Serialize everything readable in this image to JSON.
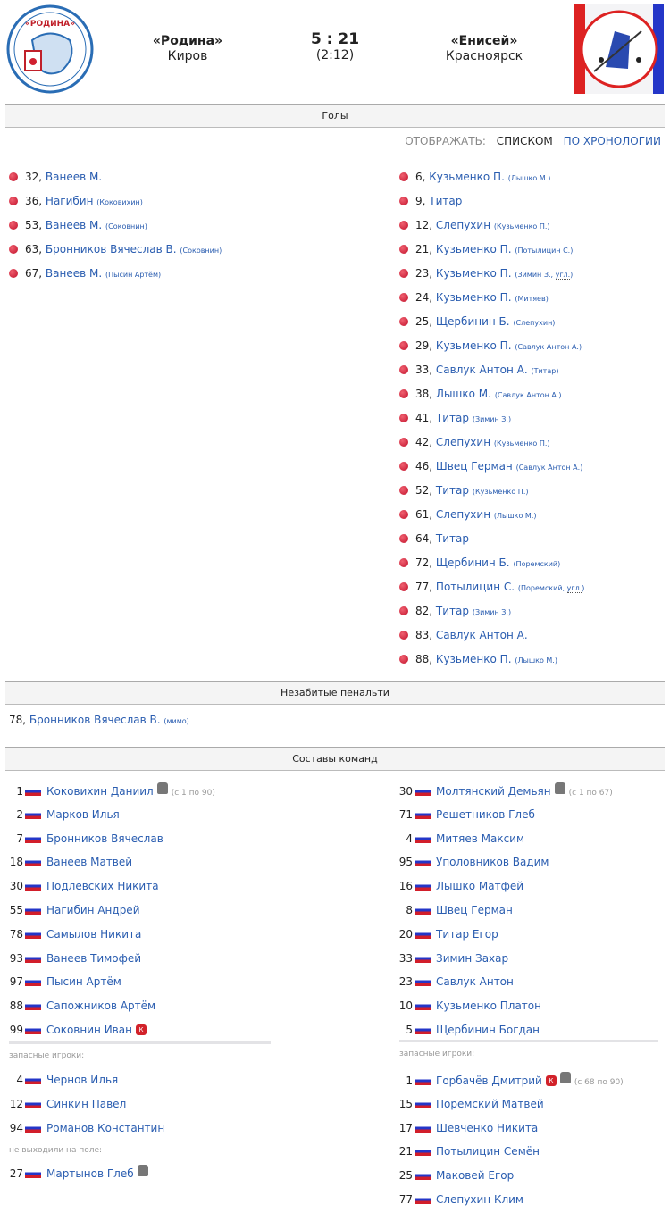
{
  "match": {
    "home": {
      "name": "«Родина»",
      "city": "Киров",
      "logo_text": "Спортивная школа «Родина»"
    },
    "away": {
      "name": "«Енисей»",
      "city": "Красноярск",
      "logo_text": "Хоккей с мячом Красноярск"
    },
    "score": "5 : 21",
    "halftime": "(2:12)"
  },
  "sections": {
    "goals": "Голы",
    "penalties": "Незабитые пенальти",
    "lineups": "Составы команд"
  },
  "view": {
    "label": "ОТОБРАЖАТЬ:",
    "list": "СПИСКОМ",
    "chrono": "ПО ХРОНОЛОГИИ"
  },
  "goals": {
    "home": [
      {
        "min": "32,",
        "scorer": "Ванеев М.",
        "assist": ""
      },
      {
        "min": "36,",
        "scorer": "Нагибин",
        "assist": "(Коковихин)"
      },
      {
        "min": "53,",
        "scorer": "Ванеев М.",
        "assist": "(Сокoвнин)"
      },
      {
        "min": "63,",
        "scorer": "Бронников Вячеслав В.",
        "assist": "(Соковнин)"
      },
      {
        "min": "67,",
        "scorer": "Ванеев М.",
        "assist": "(Пысин Артём)"
      }
    ],
    "away": [
      {
        "min": "6,",
        "scorer": "Кузьменко П.",
        "assist": "(Лышко М.)"
      },
      {
        "min": "9,",
        "scorer": "Титар",
        "assist": ""
      },
      {
        "min": "12,",
        "scorer": "Слепухин",
        "assist": "(Кузьменко П.)"
      },
      {
        "min": "21,",
        "scorer": "Кузьменко П.",
        "assist": "(Потылицин С.)"
      },
      {
        "min": "23,",
        "scorer": "Кузьменко П.",
        "assist": "(Зимин З., ",
        "extra": "угл.",
        "close": ")"
      },
      {
        "min": "24,",
        "scorer": "Кузьменко П.",
        "assist": "(Митяев)"
      },
      {
        "min": "25,",
        "scorer": "Щербинин Б.",
        "assist": "(Слепухин)"
      },
      {
        "min": "29,",
        "scorer": "Кузьменко П.",
        "assist": "(Савлук Антон А.)"
      },
      {
        "min": "33,",
        "scorer": "Савлук Антон А.",
        "assist": "(Титар)"
      },
      {
        "min": "38,",
        "scorer": "Лышко М.",
        "assist": "(Савлук Антон А.)"
      },
      {
        "min": "41,",
        "scorer": "Титар",
        "assist": "(Зимин З.)"
      },
      {
        "min": "42,",
        "scorer": "Слепухин",
        "assist": "(Кузьменко П.)"
      },
      {
        "min": "46,",
        "scorer": "Швец Герман",
        "assist": "(Савлук Антон А.)"
      },
      {
        "min": "52,",
        "scorer": "Титар",
        "assist": "(Кузьменко П.)"
      },
      {
        "min": "61,",
        "scorer": "Слепухин",
        "assist": "(Лышко М.)"
      },
      {
        "min": "64,",
        "scorer": "Титар",
        "assist": ""
      },
      {
        "min": "72,",
        "scorer": "Щербинин Б.",
        "assist": "(Поремский)"
      },
      {
        "min": "77,",
        "scorer": "Потылицин С.",
        "assist": "(Поремский, ",
        "extra": "угл.",
        "close": ")"
      },
      {
        "min": "82,",
        "scorer": "Титар",
        "assist": "(Зимин З.)"
      },
      {
        "min": "83,",
        "scorer": "Савлук Антон А.",
        "assist": ""
      },
      {
        "min": "88,",
        "scorer": "Кузьменко П.",
        "assist": "(Лышко М.)"
      }
    ]
  },
  "penalties": [
    {
      "min": "78,",
      "player": "Бронников Вячеслав В.",
      "note": "(мимо)"
    }
  ],
  "lineups": {
    "subs_label": "запасные игроки:",
    "dnp_label": "не выходили на поле:",
    "captain_mark": "К",
    "home": {
      "starters": [
        {
          "num": "1",
          "name": "Коковихин Даниил",
          "goalie": true,
          "note": "(с 1 по 90)"
        },
        {
          "num": "2",
          "name": "Марков Илья"
        },
        {
          "num": "7",
          "name": "Бронников Вячеслав"
        },
        {
          "num": "18",
          "name": "Ванеев Матвей"
        },
        {
          "num": "30",
          "name": "Подлевских Никита"
        },
        {
          "num": "55",
          "name": "Нагибин Андрей"
        },
        {
          "num": "78",
          "name": "Самылов Никита"
        },
        {
          "num": "93",
          "name": "Ванеев Тимофей"
        },
        {
          "num": "97",
          "name": "Пысин Артём"
        },
        {
          "num": "88",
          "name": "Сапожников Артём"
        },
        {
          "num": "99",
          "name": "Соковнин Иван",
          "captain": true
        }
      ],
      "subs": [
        {
          "num": "4",
          "name": "Чернов Илья"
        },
        {
          "num": "12",
          "name": "Синкин Павел"
        },
        {
          "num": "94",
          "name": "Романов Константин"
        }
      ],
      "dnp": [
        {
          "num": "27",
          "name": "Мартынов Глеб",
          "goalie": true
        }
      ]
    },
    "away": {
      "starters": [
        {
          "num": "30",
          "name": "Молтянский Демьян",
          "goalie": true,
          "note": "(с 1 по 67)"
        },
        {
          "num": "71",
          "name": "Решетников Глеб"
        },
        {
          "num": "4",
          "name": "Митяев Максим"
        },
        {
          "num": "95",
          "name": "Уполовников Вадим"
        },
        {
          "num": "16",
          "name": "Лышко Матфей"
        },
        {
          "num": "8",
          "name": "Швец Герман"
        },
        {
          "num": "20",
          "name": "Титар Егор"
        },
        {
          "num": "33",
          "name": "Зимин Захар"
        },
        {
          "num": "23",
          "name": "Савлук Антон"
        },
        {
          "num": "10",
          "name": "Кузьменко Платон"
        },
        {
          "num": "5",
          "name": "Щербинин Богдан"
        }
      ],
      "subs": [
        {
          "num": "1",
          "name": "Горбачёв Дмитрий",
          "captain": true,
          "goalie": true,
          "note": "(с 68 по 90)"
        },
        {
          "num": "15",
          "name": "Поремский Матвей"
        },
        {
          "num": "17",
          "name": "Шевченко Никита"
        },
        {
          "num": "21",
          "name": "Потылицин Семён"
        },
        {
          "num": "25",
          "name": "Маковей Егор"
        },
        {
          "num": "77",
          "name": "Слепухин Клим"
        }
      ]
    }
  }
}
